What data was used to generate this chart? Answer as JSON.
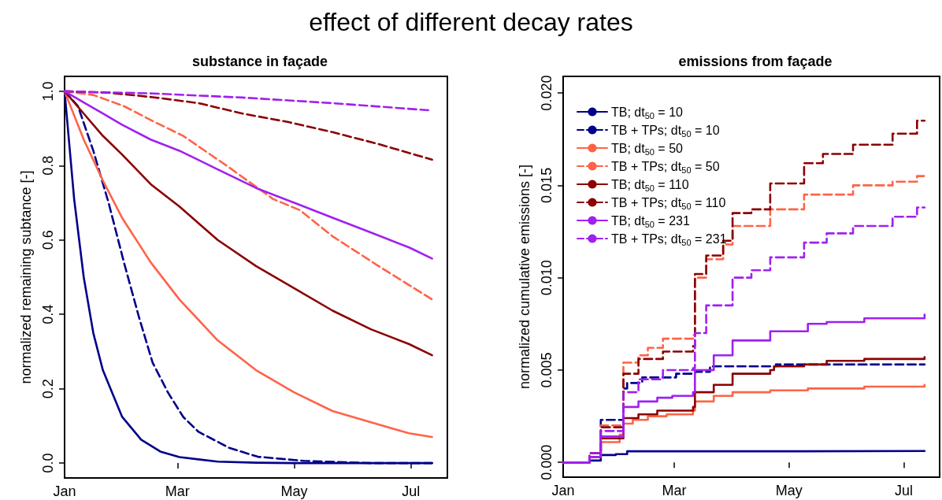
{
  "chart_data": [
    {
      "type": "line",
      "title": "substance in façade",
      "ylabel": "normalized remaining subtance [-]",
      "annotations": [
        "effect of different decay rates"
      ],
      "xlim": [
        "--01-01",
        "--07-20"
      ],
      "xticks": [
        {
          "value": "--01-01",
          "label": "Jan"
        },
        {
          "value": "--03-01",
          "label": "Mar"
        },
        {
          "value": "--05-01",
          "label": "May"
        },
        {
          "value": "--07-01",
          "label": "Jul"
        }
      ],
      "ylim": [
        -0.04,
        1.04
      ],
      "yticks": [
        {
          "value": 0,
          "label": "0.0"
        },
        0.2,
        0.4,
        0.6,
        0.8,
        {
          "value": 1,
          "label": "1.0"
        }
      ],
      "grid": false,
      "legend": false,
      "series": [
        {
          "color": "#00008b",
          "line_style": "solid",
          "x": [
            "--01-01",
            "--01-06",
            "--01-11",
            "--01-16",
            "--01-21",
            "--01-31",
            "--02-10",
            "--02-20",
            "--03-02",
            "--03-22",
            "--04-11",
            "--05-01",
            "--07-12"
          ],
          "values": [
            1,
            0.71,
            0.5,
            0.35,
            0.25,
            0.125,
            0.063,
            0.031,
            0.016,
            0.004,
            0.001,
            0,
            0
          ]
        },
        {
          "color": "#00008b",
          "line_style": "dashed",
          "x": [
            "--01-01",
            "--01-08",
            "--01-16",
            "--01-24",
            "--02-01",
            "--02-09",
            "--02-16",
            "--02-24",
            "--03-04",
            "--03-12",
            "--03-28",
            "--04-12",
            "--05-06",
            "--06-10",
            "--07-12"
          ],
          "values": [
            1,
            0.96,
            0.84,
            0.7,
            0.54,
            0.39,
            0.27,
            0.19,
            0.124,
            0.084,
            0.041,
            0.017,
            0.006,
            0,
            0
          ]
        },
        {
          "color": "#ff6347",
          "line_style": "solid",
          "x": [
            "--01-01",
            "--01-11",
            "--01-21",
            "--01-31",
            "--02-15",
            "--03-02",
            "--03-22",
            "--04-11",
            "--05-01",
            "--05-21",
            "--06-10",
            "--06-30",
            "--07-12"
          ],
          "values": [
            1,
            0.87,
            0.76,
            0.66,
            0.54,
            0.44,
            0.33,
            0.25,
            0.19,
            0.14,
            0.11,
            0.08,
            0.07
          ]
        },
        {
          "color": "#ff6347",
          "line_style": "dashed",
          "x": [
            "--01-01",
            "--01-16",
            "--02-01",
            "--02-16",
            "--03-04",
            "--03-28",
            "--04-20",
            "--05-04",
            "--05-21",
            "--06-14",
            "--07-12"
          ],
          "values": [
            1,
            0.99,
            0.96,
            0.92,
            0.88,
            0.795,
            0.71,
            0.68,
            0.61,
            0.53,
            0.44
          ]
        },
        {
          "color": "#8b0000",
          "line_style": "solid",
          "x": [
            "--01-01",
            "--01-11",
            "--01-21",
            "--01-31",
            "--02-15",
            "--03-02",
            "--03-22",
            "--04-11",
            "--05-01",
            "--05-21",
            "--06-10",
            "--06-30",
            "--07-12"
          ],
          "values": [
            1,
            0.94,
            0.88,
            0.83,
            0.75,
            0.69,
            0.6,
            0.53,
            0.47,
            0.41,
            0.36,
            0.32,
            0.29
          ]
        },
        {
          "color": "#8b0000",
          "line_style": "dashed",
          "x": [
            "--01-01",
            "--01-24",
            "--02-16",
            "--03-12",
            "--04-04",
            "--04-28",
            "--05-21",
            "--06-14",
            "--07-12"
          ],
          "values": [
            1,
            0.996,
            0.984,
            0.968,
            0.94,
            0.917,
            0.89,
            0.858,
            0.816
          ]
        },
        {
          "color": "#a020f0",
          "line_style": "solid",
          "x": [
            "--01-01",
            "--01-11",
            "--01-21",
            "--01-31",
            "--02-15",
            "--03-02",
            "--03-22",
            "--04-11",
            "--05-01",
            "--05-21",
            "--06-10",
            "--06-30",
            "--07-12"
          ],
          "values": [
            1,
            0.97,
            0.94,
            0.91,
            0.87,
            0.84,
            0.79,
            0.74,
            0.7,
            0.66,
            0.62,
            0.58,
            0.55
          ]
        },
        {
          "color": "#a020f0",
          "line_style": "dashed",
          "x": [
            "--01-01",
            "--02-16",
            "--04-04",
            "--05-21",
            "--07-10"
          ],
          "values": [
            1,
            0.994,
            0.983,
            0.968,
            0.949
          ]
        }
      ]
    },
    {
      "type": "step",
      "title": "emissions from façade",
      "ylabel": "normalized cumulative emissions [-]",
      "xlim": [
        "--01-01",
        "--07-20"
      ],
      "xticks": [
        {
          "value": "--01-01",
          "label": "Jan"
        },
        {
          "value": "--03-01",
          "label": "Mar"
        },
        {
          "value": "--05-01",
          "label": "May"
        },
        {
          "value": "--07-01",
          "label": "Jul"
        }
      ],
      "ylim": [
        -0.0008,
        0.0209
      ],
      "yticks": [
        {
          "value": 0,
          "label": "0.000"
        },
        {
          "value": 0.005,
          "label": "0.005"
        },
        {
          "value": 0.01,
          "label": "0.010"
        },
        {
          "value": 0.015,
          "label": "0.015"
        },
        {
          "value": 0.02,
          "label": "0.020"
        }
      ],
      "grid": false,
      "legend": "top left",
      "series": [
        {
          "name": "TB; dt$_{50}$ = 10",
          "color": "#00008b",
          "line_style": "solid",
          "x": [
            "--01-01",
            "--01-15",
            "--01-21",
            "--01-29",
            "--02-04",
            "--03-02",
            "--05-01",
            "--07-12"
          ],
          "values": [
            0,
            0.0001,
            0.0004,
            0.00045,
            0.0006,
            0.0006,
            0.00062,
            0.00062
          ]
        },
        {
          "name": "TB + TPs; dt$_{50}$ = 10",
          "color": "#00008b",
          "line_style": "dashed",
          "x": [
            "--01-01",
            "--01-15",
            "--01-21",
            "--02-02",
            "--02-04",
            "--02-12",
            "--03-02",
            "--03-12",
            "--03-20",
            "--04-02",
            "--04-24",
            "--07-12"
          ],
          "values": [
            0,
            0.0005,
            0.0023,
            0.004,
            0.0043,
            0.0046,
            0.0048,
            0.0049,
            0.0052,
            0.0052,
            0.0053,
            0.0053
          ]
        },
        {
          "name": "TB; dt$_{50}$ = 50",
          "color": "#ff6347",
          "line_style": "solid",
          "x": [
            "--01-01",
            "--01-15",
            "--01-21",
            "--01-31",
            "--02-02",
            "--02-07",
            "--02-15",
            "--02-25",
            "--03-11",
            "--03-12",
            "--03-22",
            "--04-01",
            "--04-21",
            "--05-11",
            "--06-10",
            "--07-12"
          ],
          "values": [
            0,
            0.0003,
            0.0011,
            0.0015,
            0.0021,
            0.0023,
            0.0025,
            0.0026,
            0.0028,
            0.0033,
            0.0036,
            0.0038,
            0.0039,
            0.004,
            0.0041,
            0.0042
          ]
        },
        {
          "name": "TB + TPs; dt$_{50}$ = 50",
          "color": "#ff6347",
          "line_style": "dashed",
          "x": [
            "--01-01",
            "--01-15",
            "--01-21",
            "--02-02",
            "--02-10",
            "--02-15",
            "--02-23",
            "--03-11",
            "--03-12",
            "--03-18",
            "--03-27",
            "--04-01",
            "--04-21",
            "--05-09",
            "--06-04",
            "--06-25",
            "--07-08",
            "--07-12"
          ],
          "values": [
            0,
            0.0005,
            0.002,
            0.0054,
            0.0058,
            0.0062,
            0.0067,
            0.0069,
            0.01,
            0.011,
            0.0118,
            0.0128,
            0.0137,
            0.0145,
            0.015,
            0.0152,
            0.0155,
            0.0155
          ]
        },
        {
          "name": "TB; dt$_{50}$ = 110",
          "color": "#8b0000",
          "line_style": "solid",
          "x": [
            "--01-01",
            "--01-15",
            "--01-21",
            "--02-02",
            "--02-10",
            "--02-20",
            "--03-11",
            "--03-12",
            "--03-22",
            "--04-01",
            "--04-21",
            "--04-23",
            "--05-09",
            "--05-21",
            "--06-10",
            "--07-12"
          ],
          "values": [
            0,
            0.0003,
            0.0013,
            0.0024,
            0.0026,
            0.0028,
            0.003,
            0.0038,
            0.0042,
            0.0048,
            0.005,
            0.0052,
            0.0053,
            0.0055,
            0.0056,
            0.0057
          ]
        },
        {
          "name": "TB + TPs; dt$_{50}$ = 110",
          "color": "#8b0000",
          "line_style": "dashed",
          "x": [
            "--01-01",
            "--01-15",
            "--01-21",
            "--02-02",
            "--02-10",
            "--02-23",
            "--03-11",
            "--03-12",
            "--03-18",
            "--03-27",
            "--04-01",
            "--04-11",
            "--04-21",
            "--05-09",
            "--05-19",
            "--06-04",
            "--06-25",
            "--07-08",
            "--07-12"
          ],
          "values": [
            0,
            0.0005,
            0.0019,
            0.0048,
            0.0056,
            0.006,
            0.0063,
            0.0102,
            0.0112,
            0.012,
            0.0135,
            0.0137,
            0.0151,
            0.0162,
            0.0167,
            0.0172,
            0.0178,
            0.0185,
            0.0185
          ]
        },
        {
          "name": "TB; dt$_{50}$ = 231",
          "color": "#a020f0",
          "line_style": "solid",
          "x": [
            "--01-01",
            "--01-15",
            "--01-21",
            "--02-02",
            "--02-10",
            "--02-20",
            "--02-28",
            "--03-11",
            "--03-12",
            "--03-22",
            "--04-01",
            "--04-21",
            "--05-11",
            "--05-21",
            "--06-10",
            "--07-12"
          ],
          "values": [
            0,
            0.0003,
            0.0014,
            0.003,
            0.0033,
            0.0035,
            0.0036,
            0.0038,
            0.005,
            0.0058,
            0.0066,
            0.0071,
            0.0075,
            0.0076,
            0.0078,
            0.008
          ]
        },
        {
          "name": "TB + TPs; dt$_{50}$ = 231",
          "color": "#a020f0",
          "line_style": "dashed",
          "x": [
            "--01-01",
            "--01-15",
            "--01-21",
            "--02-02",
            "--02-10",
            "--02-23",
            "--03-11",
            "--03-12",
            "--03-18",
            "--04-01",
            "--04-11",
            "--04-21",
            "--05-09",
            "--05-21",
            "--06-04",
            "--06-25",
            "--07-08",
            "--07-12"
          ],
          "values": [
            0,
            0.0005,
            0.0017,
            0.0038,
            0.0045,
            0.005,
            0.0051,
            0.007,
            0.0085,
            0.01,
            0.0104,
            0.0111,
            0.0119,
            0.0124,
            0.0128,
            0.0133,
            0.0138,
            0.0138
          ]
        }
      ]
    }
  ]
}
